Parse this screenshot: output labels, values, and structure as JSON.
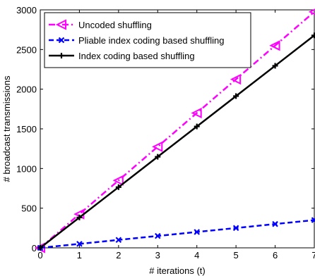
{
  "chart_data": {
    "type": "line",
    "xlabel": "# iterations (t)",
    "ylabel": "# broadcast transmissions",
    "xlim": [
      0,
      7
    ],
    "ylim": [
      0,
      3000
    ],
    "xticks": [
      0,
      1,
      2,
      3,
      4,
      5,
      6,
      7
    ],
    "yticks": [
      0,
      500,
      1000,
      1500,
      2000,
      2500,
      3000
    ],
    "grid": false,
    "legend_position": "top-left",
    "series": [
      {
        "name": "Uncoded shuffling",
        "color": "#ff00ff",
        "line_style": "dash-dot",
        "marker": "triangle-left-open",
        "x": [
          0,
          1,
          2,
          3,
          4,
          5,
          6,
          7
        ],
        "y": [
          0,
          425,
          850,
          1275,
          1700,
          2125,
          2550,
          2975
        ]
      },
      {
        "name": "Pliable index coding based shuffling",
        "color": "#0000ff",
        "line_style": "dashed",
        "marker": "x",
        "x": [
          0,
          1,
          2,
          3,
          4,
          5,
          6,
          7
        ],
        "y": [
          0,
          50,
          100,
          150,
          200,
          250,
          300,
          350
        ]
      },
      {
        "name": "Index coding based shuffling",
        "color": "#000000",
        "line_style": "solid",
        "marker": "plus",
        "x": [
          0,
          1,
          2,
          3,
          4,
          5,
          6,
          7
        ],
        "y": [
          0,
          383,
          765,
          1148,
          1530,
          1913,
          2295,
          2678
        ]
      }
    ]
  }
}
